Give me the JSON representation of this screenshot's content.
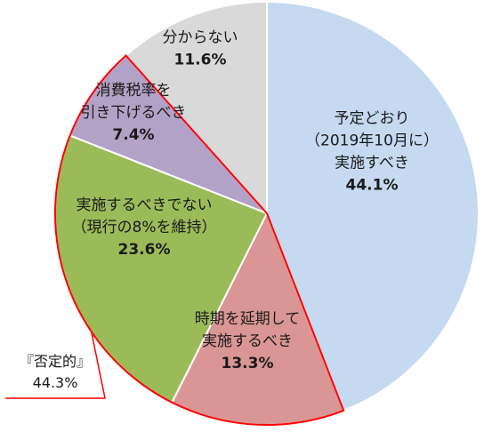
{
  "chart_data": {
    "type": "pie",
    "title": "",
    "slices": [
      {
        "lines": [
          "予定どおり",
          "（2019年10月に）",
          "実施すべき"
        ],
        "value": 44.1,
        "value_label": "44.1%",
        "color": "#c5d9f1"
      },
      {
        "lines": [
          "時期を延期して",
          "実施するべき"
        ],
        "value": 13.3,
        "value_label": "13.3%",
        "color": "#d99694"
      },
      {
        "lines": [
          "実施するべきでない",
          "（現行の8%を維持）"
        ],
        "value": 23.6,
        "value_label": "23.6%",
        "color": "#9bbb59"
      },
      {
        "lines": [
          "消費税率を",
          "引き下げるべき"
        ],
        "value": 7.4,
        "value_label": "7.4%",
        "color": "#b3a2c7"
      },
      {
        "lines": [
          "分からない"
        ],
        "value": 11.6,
        "value_label": "11.6%",
        "color": "#d9d9d9"
      }
    ],
    "highlight": {
      "label": "『否定的』",
      "value": 44.3,
      "value_label": "44.3%",
      "color": "#ff0000"
    }
  }
}
